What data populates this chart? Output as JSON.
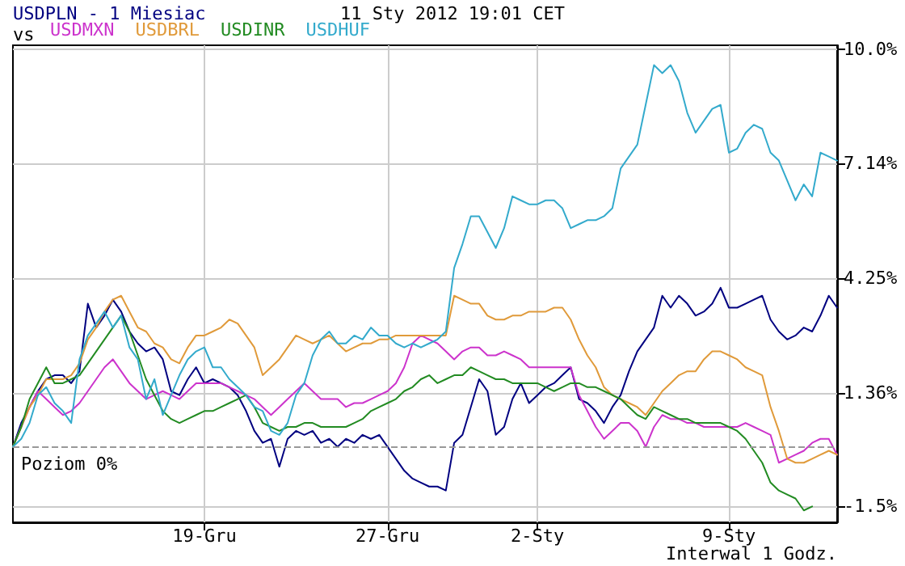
{
  "chart_data": {
    "type": "line",
    "title": "USDPLN - 1 Miesiac",
    "subtitle": "11 Sty 2012 19:01 CET",
    "legend_title": "vs",
    "legend": "top left",
    "grid": true,
    "categories": [
      null,
      null,
      null,
      null,
      null,
      null,
      null,
      null,
      null,
      null,
      null,
      null,
      null,
      null,
      null,
      null,
      null,
      null,
      null,
      null,
      null,
      null,
      null,
      "19-Gru",
      null,
      null,
      null,
      null,
      null,
      null,
      null,
      null,
      null,
      null,
      null,
      null,
      null,
      null,
      null,
      null,
      null,
      null,
      null,
      null,
      null,
      "27-Gru",
      null,
      null,
      null,
      null,
      null,
      null,
      null,
      null,
      null,
      null,
      null,
      null,
      null,
      null,
      null,
      null,
      null,
      "2-Sty",
      null,
      null,
      null,
      null,
      null,
      null,
      null,
      null,
      null,
      null,
      null,
      null,
      null,
      null,
      null,
      null,
      null,
      null,
      null,
      null,
      null,
      null,
      "9-Sty",
      null,
      null,
      null,
      null,
      null,
      null,
      null,
      null,
      null,
      null,
      null,
      null,
      null
    ],
    "series": [
      {
        "color": "#000080",
        "values": [
          0,
          0.6,
          1.0,
          1.4,
          1.7,
          1.8,
          1.8,
          1.6,
          1.9,
          3.6,
          3.0,
          3.3,
          3.7,
          3.4,
          2.9,
          2.6,
          2.4,
          2.5,
          2.2,
          1.4,
          1.3,
          1.7,
          2.0,
          1.6,
          1.7,
          1.6,
          1.5,
          1.3,
          0.9,
          0.4,
          0.1,
          0.2,
          -0.5,
          0.2,
          0.4,
          0.3,
          0.4,
          0.1,
          0.2,
          0.0,
          0.2,
          0.1,
          0.3,
          0.2,
          0.3,
          0.0,
          -0.3,
          -0.6,
          -0.8,
          -0.9,
          -1.0,
          -1.0,
          -1.1,
          0.1,
          0.3,
          1.0,
          1.7,
          1.4,
          0.3,
          0.5,
          1.2,
          1.6,
          1.1,
          1.3,
          1.5,
          1.6,
          1.8,
          2.0,
          1.2,
          1.1,
          0.9,
          0.6,
          1.0,
          1.3,
          1.9,
          2.4,
          2.7,
          3.0,
          3.8,
          3.5,
          3.8,
          3.6,
          3.3,
          3.4,
          3.6,
          4.0,
          3.5,
          3.5,
          3.6,
          3.7,
          3.8,
          3.2,
          2.9,
          2.7,
          2.8,
          3.0,
          2.9,
          3.3,
          3.8,
          3.5
        ]
      },
      {
        "name": "USDMXN",
        "color": "#cc33cc",
        "values": [
          0.0,
          0.5,
          1.0,
          1.4,
          1.2,
          1.0,
          0.8,
          0.9,
          1.1,
          1.4,
          1.7,
          2.0,
          2.2,
          1.9,
          1.6,
          1.4,
          1.2,
          1.3,
          1.4,
          1.3,
          1.2,
          1.4,
          1.6,
          1.6,
          1.6,
          1.6,
          1.5,
          1.4,
          1.3,
          1.2,
          1.0,
          0.8,
          1.0,
          1.2,
          1.4,
          1.6,
          1.4,
          1.2,
          1.2,
          1.2,
          1.0,
          1.1,
          1.1,
          1.2,
          1.3,
          1.4,
          1.6,
          2.0,
          2.6,
          2.8,
          2.7,
          2.6,
          2.4,
          2.2,
          2.4,
          2.5,
          2.5,
          2.3,
          2.3,
          2.4,
          2.3,
          2.2,
          2.0,
          2.0,
          2.0,
          2.0,
          2.0,
          2.0,
          1.3,
          0.9,
          0.5,
          0.2,
          0.4,
          0.6,
          0.6,
          0.4,
          0.0,
          0.5,
          0.8,
          0.7,
          0.7,
          0.6,
          0.6,
          0.5,
          0.5,
          0.5,
          0.5,
          0.5,
          0.6,
          0.5,
          0.4,
          0.3,
          -0.4,
          -0.3,
          -0.2,
          -0.1,
          0.1,
          0.2,
          0.2,
          -0.2
        ]
      },
      {
        "name": "USDBRL",
        "color": "#e09a3a",
        "values": [
          0.0,
          0.5,
          1.0,
          1.3,
          1.7,
          1.7,
          1.7,
          1.8,
          2.1,
          2.7,
          3.0,
          3.4,
          3.7,
          3.8,
          3.4,
          3.0,
          2.9,
          2.6,
          2.5,
          2.2,
          2.1,
          2.5,
          2.8,
          2.8,
          2.9,
          3.0,
          3.2,
          3.1,
          2.8,
          2.5,
          1.8,
          2.0,
          2.2,
          2.5,
          2.8,
          2.7,
          2.6,
          2.7,
          2.8,
          2.6,
          2.4,
          2.5,
          2.6,
          2.6,
          2.7,
          2.7,
          2.8,
          2.8,
          2.8,
          2.8,
          2.8,
          2.8,
          2.8,
          3.8,
          3.7,
          3.6,
          3.6,
          3.3,
          3.2,
          3.2,
          3.3,
          3.3,
          3.4,
          3.4,
          3.4,
          3.5,
          3.5,
          3.2,
          2.7,
          2.3,
          2.0,
          1.5,
          1.3,
          1.2,
          1.1,
          1.0,
          0.8,
          1.1,
          1.4,
          1.6,
          1.8,
          1.9,
          1.9,
          2.2,
          2.4,
          2.4,
          2.3,
          2.2,
          2.0,
          1.9,
          1.8,
          1.0,
          0.4,
          -0.3,
          -0.4,
          -0.4,
          -0.3,
          -0.2,
          -0.1,
          -0.2
        ]
      },
      {
        "name": "USDINR",
        "color": "#228b22",
        "values": [
          0.0,
          0.5,
          1.2,
          1.6,
          2.0,
          1.6,
          1.6,
          1.7,
          1.8,
          2.1,
          2.4,
          2.7,
          3.0,
          3.3,
          2.9,
          2.3,
          1.7,
          1.3,
          0.9,
          0.7,
          0.6,
          0.7,
          0.8,
          0.9,
          0.9,
          1.0,
          1.1,
          1.2,
          1.3,
          1.0,
          0.6,
          0.5,
          0.4,
          0.5,
          0.5,
          0.6,
          0.6,
          0.5,
          0.5,
          0.5,
          0.5,
          0.6,
          0.7,
          0.9,
          1.0,
          1.1,
          1.2,
          1.4,
          1.5,
          1.7,
          1.8,
          1.6,
          1.7,
          1.8,
          1.8,
          2.0,
          1.9,
          1.8,
          1.7,
          1.7,
          1.6,
          1.6,
          1.6,
          1.6,
          1.5,
          1.4,
          1.5,
          1.6,
          1.6,
          1.5,
          1.5,
          1.4,
          1.3,
          1.2,
          1.0,
          0.8,
          0.7,
          1.0,
          0.9,
          0.8,
          0.7,
          0.7,
          0.6,
          0.6,
          0.6,
          0.6,
          0.5,
          0.4,
          0.2,
          -0.1,
          -0.4,
          -0.9,
          -1.1,
          -1.2,
          -1.3,
          -1.6,
          -1.5,
          null,
          null,
          null
        ]
      },
      {
        "name": "USDHUF",
        "color": "#33aacc",
        "values": [
          0.0,
          0.2,
          0.6,
          1.3,
          1.5,
          1.1,
          0.9,
          0.6,
          2.2,
          2.8,
          3.1,
          3.4,
          3.0,
          3.3,
          2.5,
          2.2,
          1.2,
          1.7,
          0.8,
          1.3,
          1.8,
          2.2,
          2.4,
          2.5,
          2.0,
          2.0,
          1.7,
          1.5,
          1.3,
          1.0,
          0.9,
          0.4,
          0.3,
          0.6,
          1.3,
          1.6,
          2.3,
          2.7,
          2.9,
          2.6,
          2.6,
          2.8,
          2.7,
          3.0,
          2.8,
          2.8,
          2.6,
          2.5,
          2.6,
          2.5,
          2.6,
          2.7,
          2.9,
          4.5,
          5.1,
          5.8,
          5.8,
          5.4,
          5.0,
          5.5,
          6.3,
          6.2,
          6.1,
          6.1,
          6.2,
          6.2,
          6.0,
          5.5,
          5.6,
          5.7,
          5.7,
          5.8,
          6.0,
          7.0,
          7.3,
          7.6,
          8.6,
          9.6,
          9.4,
          9.6,
          9.2,
          8.4,
          7.9,
          8.2,
          8.5,
          8.6,
          7.4,
          7.5,
          7.9,
          8.1,
          8.0,
          7.4,
          7.2,
          6.7,
          6.2,
          6.6,
          6.3,
          7.4,
          7.3,
          7.2
        ]
      }
    ],
    "ylim": [
      -1.9,
      10.1
    ],
    "yticks": [
      {
        "value": -1.5,
        "label": "-1.5%"
      },
      {
        "value": 1.36,
        "label": "1.36%"
      },
      {
        "value": 4.25,
        "label": "4.25%"
      },
      {
        "value": 7.14,
        "label": "7.14%"
      },
      {
        "value": 10.0,
        "label": "10.0%"
      }
    ],
    "ref_lines": [
      {
        "axis": "y",
        "value": 0,
        "label": "Poziom 0%",
        "color": "#999999",
        "line_style": "dashed"
      }
    ],
    "annotations": [
      "Interwal 1 Godz."
    ],
    "line_style": "solid"
  }
}
